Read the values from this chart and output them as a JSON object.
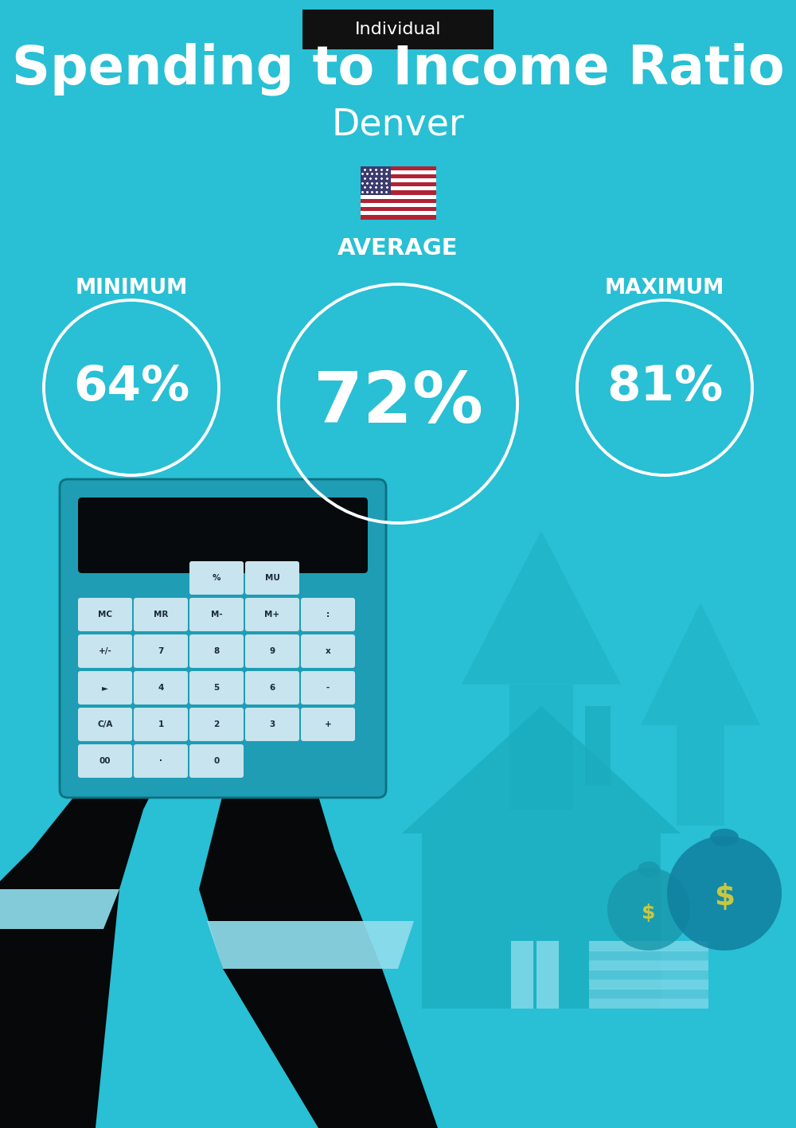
{
  "title": "Spending to Income Ratio",
  "subtitle": "Denver",
  "tag_label": "Individual",
  "bg_color": "#29BFD4",
  "tag_bg": "#111111",
  "tag_text_color": "#ffffff",
  "title_color": "#ffffff",
  "subtitle_color": "#ffffff",
  "circle_color": "#ffffff",
  "min_label": "MINIMUM",
  "avg_label": "AVERAGE",
  "max_label": "MAXIMUM",
  "min_value": "64%",
  "avg_value": "72%",
  "max_value": "81%",
  "label_color": "#ffffff",
  "value_color": "#ffffff",
  "fig_width": 10.0,
  "fig_height": 14.17,
  "arrow_color": "#1AAFC0",
  "calc_color": "#1E9DB5",
  "hand_color": "#06080A",
  "house_color": "#1aacbe",
  "cuff_color": "#90DDED"
}
